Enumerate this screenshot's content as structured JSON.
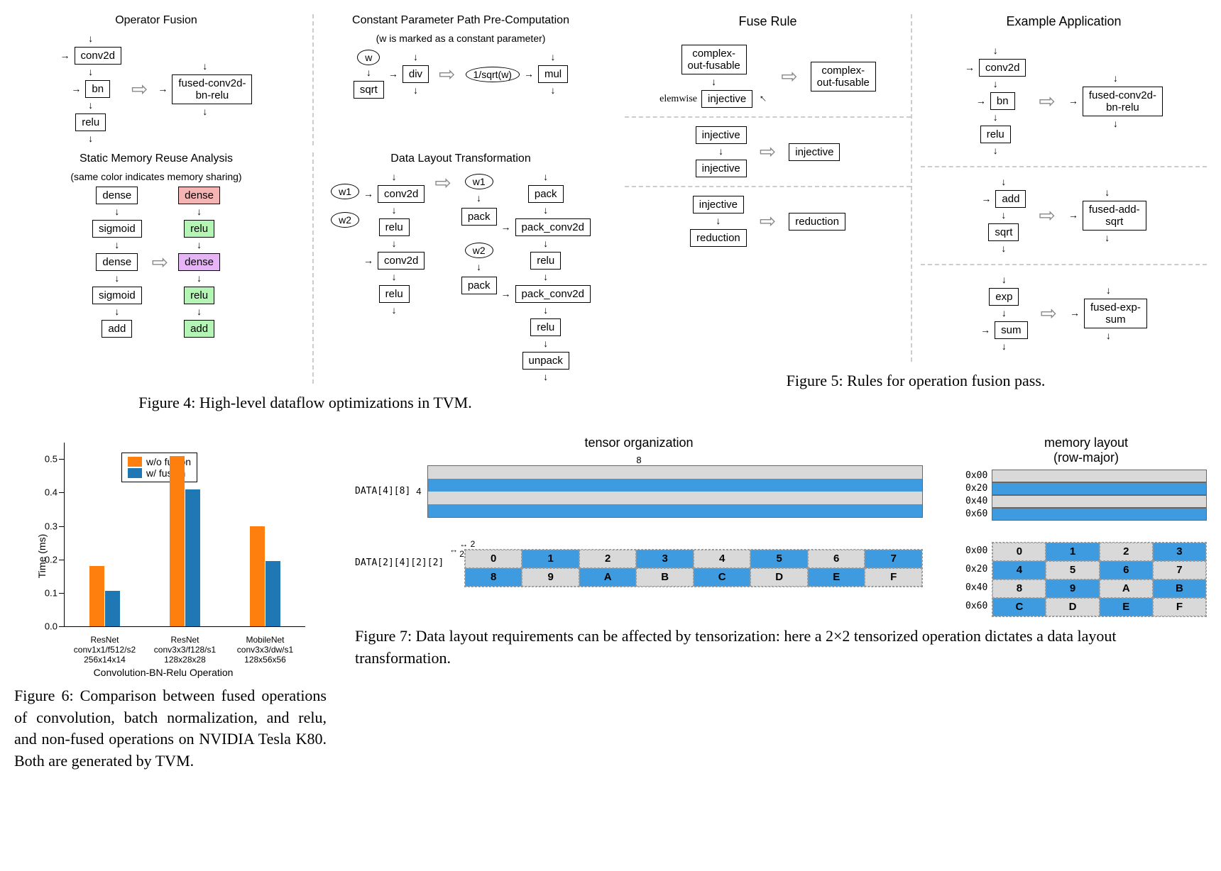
{
  "fig4": {
    "title_a": "Operator Fusion",
    "title_b": "Constant Parameter Path Pre-Computation",
    "title_b_sub": "(w is marked as a constant parameter)",
    "title_c": "Static Memory Reuse Analysis",
    "title_c_sub": "(same color indicates memory sharing)",
    "title_d": "Data Layout Transformation",
    "a_left": [
      "conv2d",
      "bn",
      "relu"
    ],
    "a_right": "fused-conv2d-\nbn-relu",
    "b_left_w": "w",
    "b_left_ops": [
      "sqrt",
      "div"
    ],
    "b_mid": "1/sqrt(w)",
    "b_right": "mul",
    "c_left": [
      "dense",
      "sigmoid",
      "dense",
      "sigmoid",
      "add"
    ],
    "c_right": [
      "dense",
      "relu",
      "dense",
      "relu",
      "add"
    ],
    "c_right_colors": [
      "pink",
      "green",
      "violet",
      "green",
      "green"
    ],
    "d_left_w": [
      "w1",
      "w2"
    ],
    "d_left_ops": [
      "conv2d",
      "relu",
      "conv2d",
      "relu"
    ],
    "d_right_w": [
      "w1",
      "w2"
    ],
    "d_right_pack": "pack",
    "d_right_ops": [
      "pack",
      "pack_conv2d",
      "relu",
      "pack_conv2d",
      "relu",
      "unpack"
    ],
    "caption": "Figure 4: High-level dataflow optimizations in TVM."
  },
  "fig5": {
    "head_left": "Fuse Rule",
    "head_right": "Example Application",
    "r1_left_a": "complex-\nout-fusable",
    "r1_left_b": "injective",
    "r1_left_side": "elemwise",
    "r1_left_out": "complex-\nout-fusable",
    "r1_right_in": [
      "conv2d",
      "bn",
      "relu"
    ],
    "r1_right_out": "fused-conv2d-\nbn-relu",
    "r2_left_in": [
      "injective",
      "injective"
    ],
    "r2_left_out": "injective",
    "r2_right_in": [
      "add",
      "sqrt"
    ],
    "r2_right_out": "fused-add-\nsqrt",
    "r3_left_in": [
      "injective",
      "reduction"
    ],
    "r3_left_out": "reduction",
    "r3_right_in": [
      "exp",
      "sum"
    ],
    "r3_right_out": "fused-exp-\nsum",
    "caption": "Figure 5: Rules for operation fusion pass."
  },
  "fig6": {
    "type": "bar",
    "ylabel": "Time (ms)",
    "xlabel": "Convolution-BN-Relu Operation",
    "ylim": [
      0,
      0.55
    ],
    "ytick_step": 0.1,
    "yticks": [
      "0.0",
      "0.1",
      "0.2",
      "0.3",
      "0.4",
      "0.5"
    ],
    "categories": [
      {
        "line1": "ResNet",
        "line2": "conv1x1/f512/s2",
        "line3": "256x14x14"
      },
      {
        "line1": "ResNet",
        "line2": "conv3x3/f128/s1",
        "line3": "128x28x28"
      },
      {
        "line1": "MobileNet",
        "line2": "conv3x3/dw/s1",
        "line3": "128x56x56"
      }
    ],
    "series": [
      {
        "name": "w/o fusion",
        "color": "#ff7f0e",
        "values": [
          0.18,
          0.51,
          0.3
        ]
      },
      {
        "name": "w/ fusion",
        "color": "#1f77b4",
        "values": [
          0.105,
          0.41,
          0.195
        ]
      }
    ],
    "bar_width": 0.38,
    "caption": "Figure 6: Comparison between fused operations of convolution, batch normalization, and relu, and non-fused operations on NVIDIA Tesla K80. Both are generated by TVM."
  },
  "fig7": {
    "title_left": "tensor organization",
    "title_right": "memory layout\n(row-major)",
    "data48_label": "DATA[4][8]",
    "data2422_label": "DATA[2][4][2][2]",
    "dim_w": "8",
    "dim_h": "4",
    "dim_small": "2",
    "stripe_colors": [
      "#d9d9d9",
      "#3f9be0",
      "#d9d9d9",
      "#3f9be0"
    ],
    "addrs": [
      "0x00",
      "0x20",
      "0x40",
      "0x60"
    ],
    "hex": [
      "0",
      "1",
      "2",
      "3",
      "4",
      "5",
      "6",
      "7",
      "8",
      "9",
      "A",
      "B",
      "C",
      "D",
      "E",
      "F"
    ],
    "mem_grid": [
      "0",
      "1",
      "2",
      "3",
      "4",
      "5",
      "6",
      "7",
      "8",
      "9",
      "A",
      "B",
      "C",
      "D",
      "E",
      "F"
    ],
    "cell_colors_top": [
      "g",
      "b",
      "g",
      "b",
      "g",
      "b",
      "g",
      "b",
      "b",
      "g",
      "b",
      "g",
      "b",
      "g",
      "b",
      "g"
    ],
    "cell_blue": "#3f9be0",
    "cell_gray": "#d9d9d9",
    "caption": "Figure 7: Data layout requirements can be affected by tensorization: here a 2×2 tensorized operation dictates a data layout transformation."
  }
}
